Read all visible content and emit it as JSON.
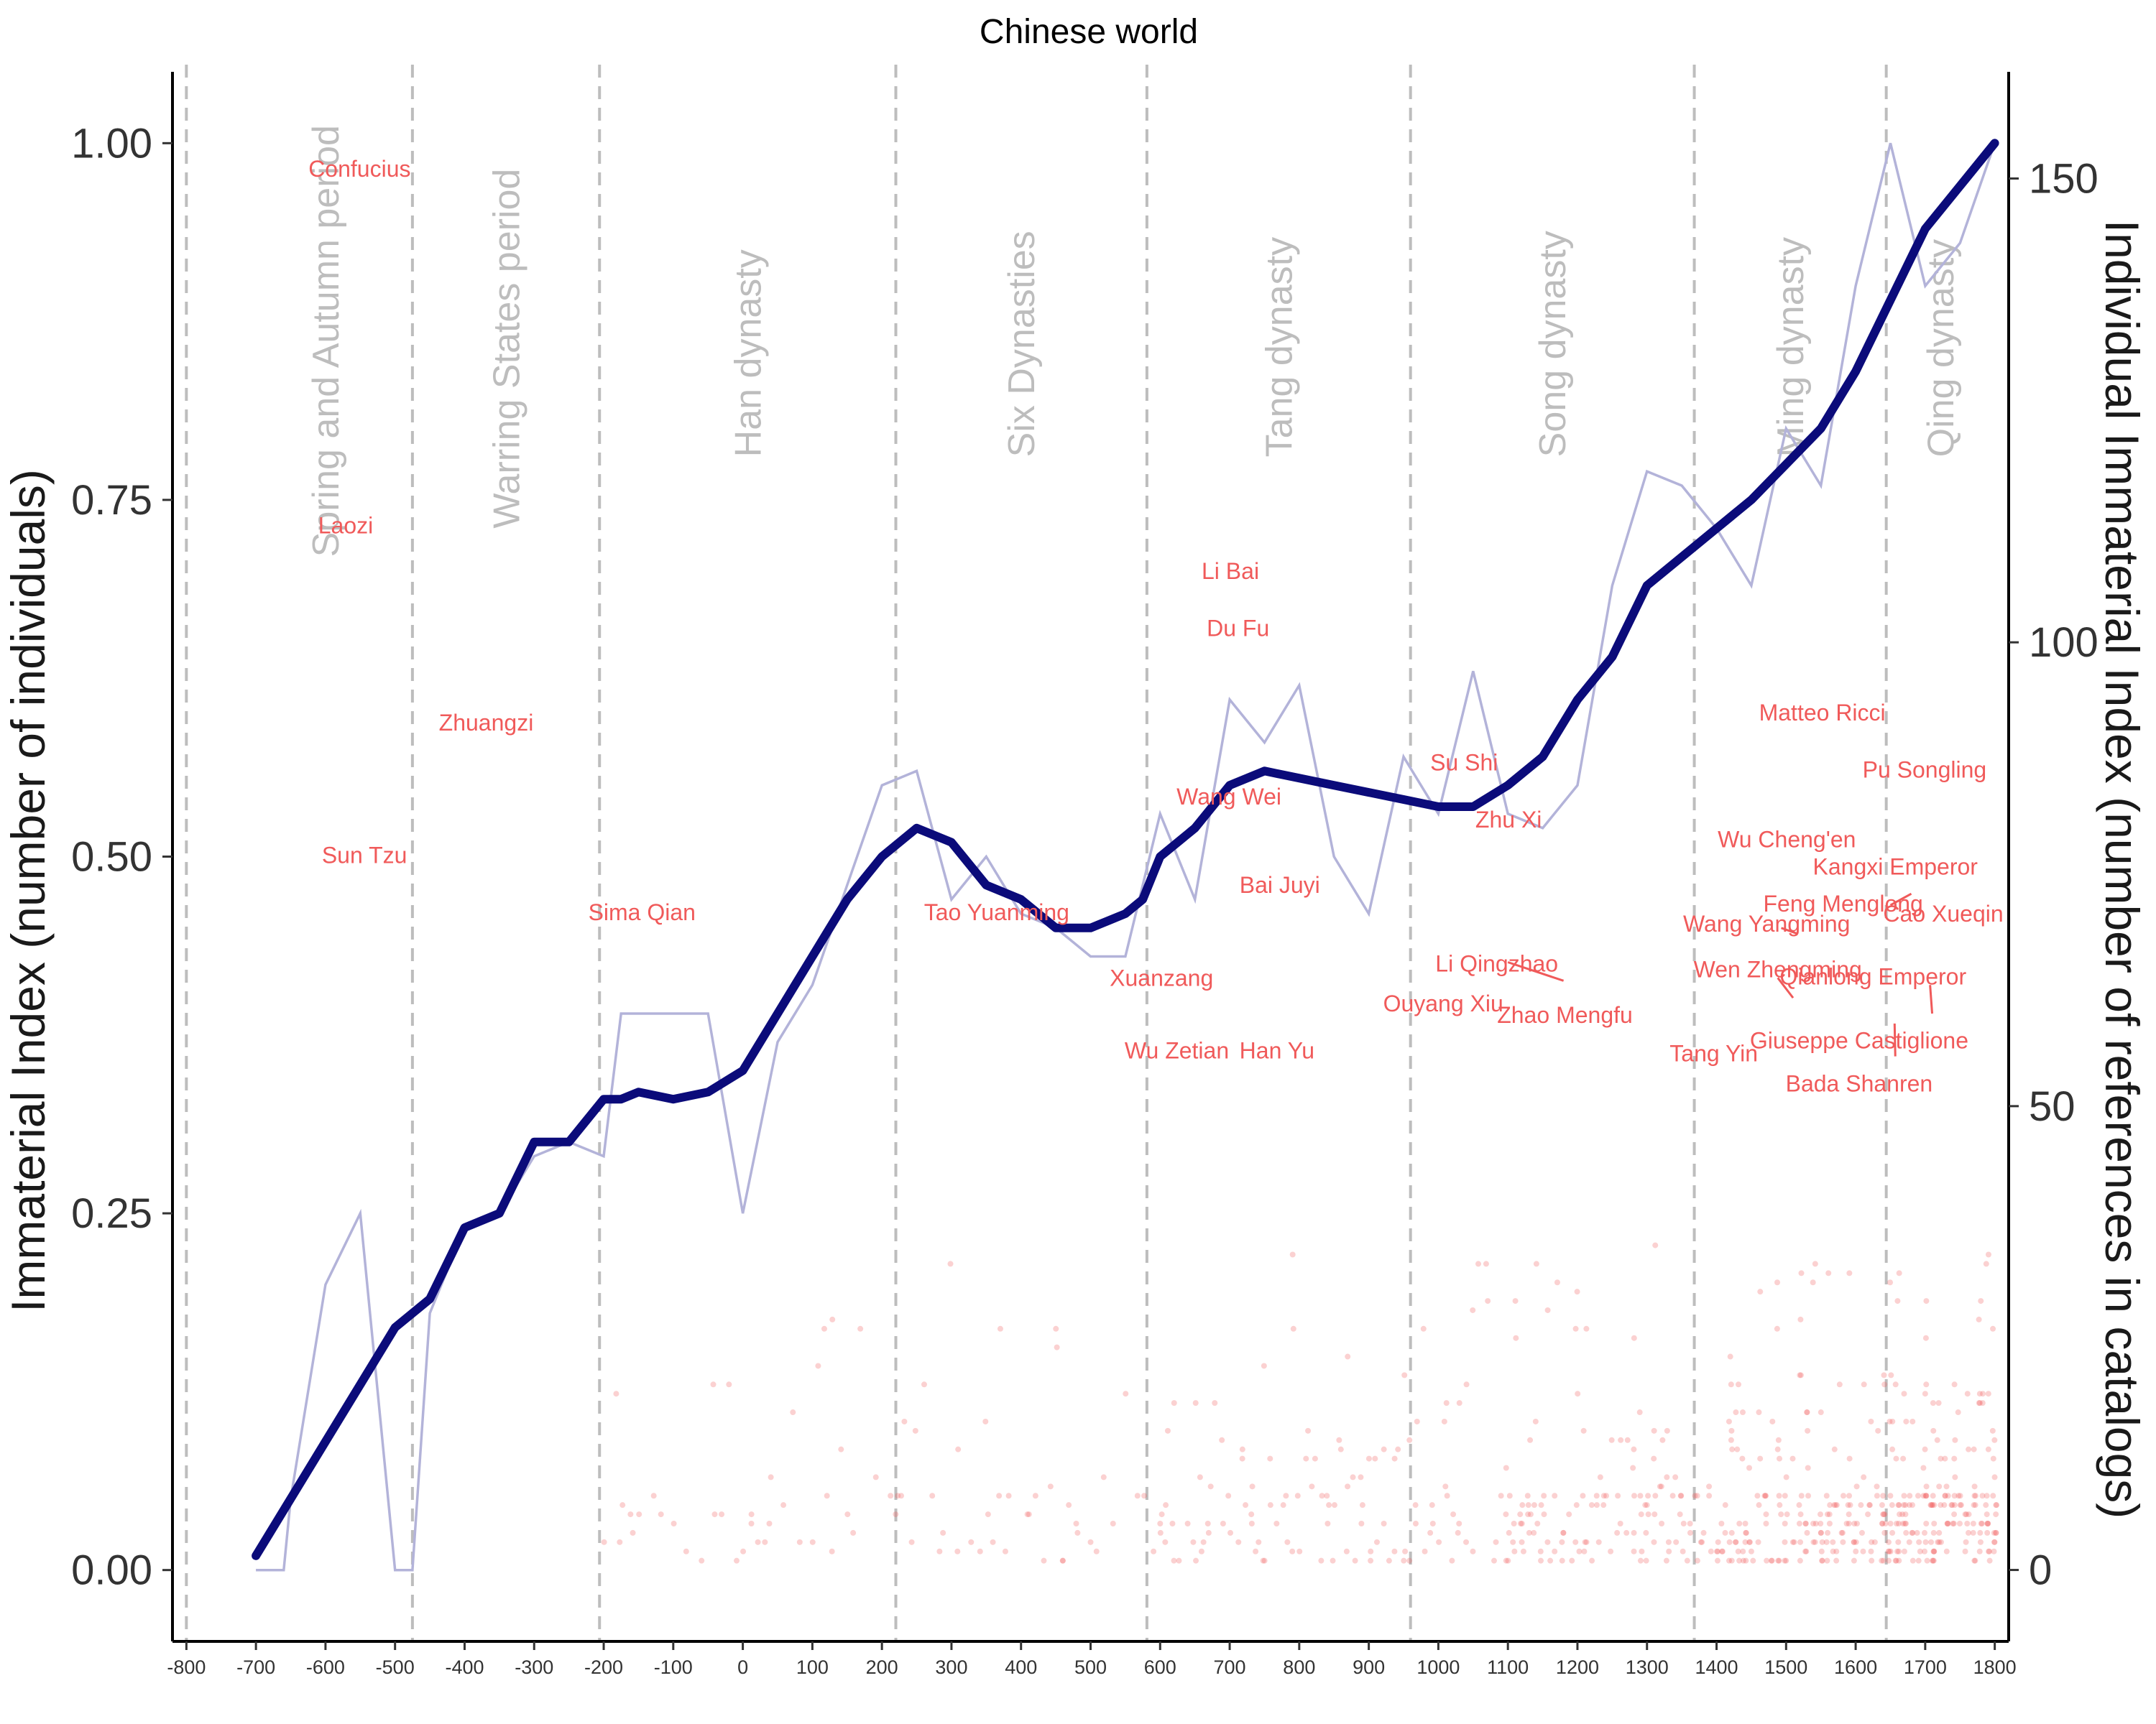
{
  "chart_data": {
    "type": "line",
    "title": "Chinese world",
    "ylabel_left": "Immaterial Index (number of individuals)",
    "ylabel_right": "Individual Immaterial Index (number of references in catalogs)",
    "xlim": [
      -820,
      1820
    ],
    "ylim_left": [
      -0.05,
      1.05
    ],
    "ylim_right": [
      -7.7,
      161.5
    ],
    "x_ticks": [
      -800,
      -700,
      -600,
      -500,
      -400,
      -300,
      -200,
      -100,
      0,
      100,
      200,
      300,
      400,
      500,
      600,
      700,
      800,
      900,
      1000,
      1100,
      1200,
      1300,
      1400,
      1500,
      1600,
      1700,
      1800
    ],
    "y_ticks_left": [
      "0.00",
      "0.25",
      "0.50",
      "0.75",
      "1.00"
    ],
    "y_ticks_right": [
      "0",
      "50",
      "100",
      "150"
    ],
    "colors": {
      "smooth": "#0b0b7a",
      "raw": "#b3b3d9",
      "points": "#f05a5a",
      "labels": "#f05a5a",
      "periods": "#bdbdbd"
    },
    "periods": [
      {
        "start": -800,
        "label": "Spring and Autumn period"
      },
      {
        "start": -475,
        "label": "Warring States period"
      },
      {
        "start": -206,
        "label": "Han dynasty"
      },
      {
        "start": 220,
        "label": "Six Dynasties"
      },
      {
        "start": 581,
        "label": "Tang dynasty"
      },
      {
        "start": 960,
        "label": "Song dynasty"
      },
      {
        "start": 1368,
        "label": "Ming dynasty"
      },
      {
        "start": 1644,
        "label": "Qing dynasty"
      }
    ],
    "period_label_anchor_y": [
      0.71,
      0.73,
      0.78,
      0.78,
      0.78,
      0.78,
      0.78,
      0.78
    ],
    "series": [
      {
        "name": "smoothed",
        "x": [
          -700,
          -650,
          -600,
          -550,
          -500,
          -450,
          -400,
          -350,
          -300,
          -250,
          -200,
          -175,
          -150,
          -100,
          -50,
          0,
          25,
          50,
          100,
          150,
          200,
          250,
          300,
          350,
          400,
          450,
          500,
          525,
          550,
          575,
          600,
          650,
          700,
          750,
          800,
          850,
          900,
          950,
          1000,
          1050,
          1100,
          1150,
          1200,
          1250,
          1300,
          1350,
          1400,
          1450,
          1500,
          1550,
          1600,
          1650,
          1700,
          1750,
          1800
        ],
        "y": [
          0.01,
          0.05,
          0.09,
          0.13,
          0.17,
          0.19,
          0.24,
          0.25,
          0.3,
          0.3,
          0.33,
          0.33,
          0.335,
          0.33,
          0.335,
          0.35,
          0.37,
          0.39,
          0.43,
          0.47,
          0.5,
          0.52,
          0.51,
          0.48,
          0.47,
          0.45,
          0.45,
          0.455,
          0.46,
          0.47,
          0.5,
          0.52,
          0.55,
          0.56,
          0.555,
          0.55,
          0.545,
          0.54,
          0.535,
          0.535,
          0.55,
          0.57,
          0.61,
          0.64,
          0.69,
          0.71,
          0.73,
          0.75,
          0.775,
          0.8,
          0.84,
          0.89,
          0.94,
          0.97,
          1.0
        ]
      },
      {
        "name": "raw",
        "x": [
          -700,
          -660,
          -650,
          -600,
          -550,
          -500,
          -475,
          -450,
          -400,
          -350,
          -300,
          -250,
          -200,
          -175,
          -150,
          -100,
          -50,
          0,
          50,
          100,
          150,
          200,
          250,
          300,
          350,
          400,
          450,
          500,
          550,
          600,
          650,
          700,
          750,
          800,
          850,
          900,
          950,
          1000,
          1050,
          1100,
          1150,
          1200,
          1250,
          1300,
          1350,
          1400,
          1450,
          1500,
          1550,
          1600,
          1650,
          1700,
          1750,
          1800
        ],
        "y": [
          0.0,
          0.0,
          0.05,
          0.2,
          0.25,
          0.0,
          0.0,
          0.18,
          0.24,
          0.25,
          0.29,
          0.3,
          0.29,
          0.39,
          0.39,
          0.39,
          0.39,
          0.25,
          0.37,
          0.41,
          0.48,
          0.55,
          0.56,
          0.47,
          0.5,
          0.46,
          0.45,
          0.43,
          0.43,
          0.53,
          0.47,
          0.61,
          0.58,
          0.62,
          0.5,
          0.46,
          0.57,
          0.53,
          0.63,
          0.53,
          0.52,
          0.55,
          0.69,
          0.77,
          0.76,
          0.73,
          0.69,
          0.8,
          0.76,
          0.9,
          1.0,
          0.9,
          0.93,
          1.0
        ]
      }
    ],
    "annotations": [
      {
        "text": "Confucius",
        "x": -551,
        "y": 0.982
      },
      {
        "text": "Laozi",
        "x": -571,
        "y": 0.732
      },
      {
        "text": "Zhuangzi",
        "x": -369,
        "y": 0.594
      },
      {
        "text": "Sun Tzu",
        "x": -544,
        "y": 0.501
      },
      {
        "text": "Sima Qian",
        "x": -145,
        "y": 0.461
      },
      {
        "text": "Tao Yuanming",
        "x": 365,
        "y": 0.461
      },
      {
        "text": "Li Bai",
        "x": 701,
        "y": 0.7
      },
      {
        "text": "Du Fu",
        "x": 712,
        "y": 0.66
      },
      {
        "text": "Wang Wei",
        "x": 699,
        "y": 0.542
      },
      {
        "text": "Bai Juyi",
        "x": 772,
        "y": 0.48
      },
      {
        "text": "Xuanzang",
        "x": 602,
        "y": 0.415
      },
      {
        "text": "Wu Zetian",
        "x": 624,
        "y": 0.364
      },
      {
        "text": "Han Yu",
        "x": 768,
        "y": 0.364
      },
      {
        "text": "Li Qingzhao",
        "x": 1084,
        "y": 0.425
      },
      {
        "text": "Ouyang Xiu",
        "x": 1007,
        "y": 0.397
      },
      {
        "text": "Su Shi",
        "x": 1037,
        "y": 0.566
      },
      {
        "text": "Zhu Xi",
        "x": 1101,
        "y": 0.526
      },
      {
        "text": "Wang Yangming",
        "x": 1472,
        "y": 0.453
      },
      {
        "text": "Matteo Ricci",
        "x": 1552,
        "y": 0.601
      },
      {
        "text": "Wu Cheng'en",
        "x": 1501,
        "y": 0.512
      },
      {
        "text": "Feng Menglong",
        "x": 1582,
        "y": 0.467
      },
      {
        "text": "Wen Zhengming",
        "x": 1488,
        "y": 0.421
      },
      {
        "text": "Zhao Mengfu",
        "x": 1182,
        "y": 0.389
      },
      {
        "text": "Tang Yin",
        "x": 1396,
        "y": 0.362
      },
      {
        "text": "Pu Songling",
        "x": 1699,
        "y": 0.561
      },
      {
        "text": "Kangxi Emperor",
        "x": 1657,
        "y": 0.493
      },
      {
        "text": "Cao Xueqin",
        "x": 1726,
        "y": 0.46
      },
      {
        "text": "Qianlong Emperor",
        "x": 1625,
        "y": 0.416
      },
      {
        "text": "Giuseppe Castiglione",
        "x": 1605,
        "y": 0.371
      },
      {
        "text": "Bada Shanren",
        "x": 1605,
        "y": 0.341
      }
    ],
    "annotation_leaders": [
      {
        "from": [
          1493,
          0.45
        ],
        "to": [
          1516,
          0.446
        ]
      },
      {
        "from": [
          1100,
          0.426
        ],
        "to": [
          1180,
          0.413
        ]
      },
      {
        "from": [
          1488,
          0.415
        ],
        "to": [
          1510,
          0.401
        ]
      },
      {
        "from": [
          1680,
          0.474
        ],
        "to": [
          1650,
          0.466
        ]
      },
      {
        "from": [
          1707,
          0.41
        ],
        "to": [
          1710,
          0.39
        ]
      },
      {
        "from": [
          1657,
          0.36
        ],
        "to": [
          1656,
          0.383
        ]
      }
    ],
    "points_note_seed": 7
  }
}
